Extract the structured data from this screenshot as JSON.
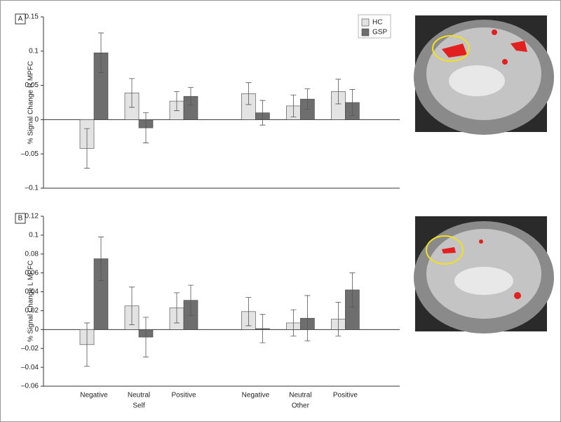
{
  "chart_data": [
    {
      "type": "bar",
      "panel_label": "A",
      "ylabel": "% Signal Change R MPFC",
      "categories": [
        null,
        null,
        null,
        null,
        null,
        null
      ],
      "series": [
        {
          "name": "HC",
          "color": "#e3e3e3",
          "values": [
            -0.042,
            0.039,
            0.027,
            0.038,
            0.02,
            0.041
          ],
          "errors": [
            0.029,
            0.021,
            0.014,
            0.016,
            0.016,
            0.018
          ]
        },
        {
          "name": "GSP",
          "color": "#6e6e6e",
          "values": [
            0.0975,
            -0.012,
            0.034,
            0.01,
            0.03,
            0.025
          ],
          "errors": [
            0.029,
            0.022,
            0.013,
            0.018,
            0.015,
            0.019
          ]
        }
      ],
      "ylim": [
        -0.1,
        0.15
      ],
      "yticks": [
        {
          "value": -0.1,
          "label": "–0.1"
        },
        {
          "value": -0.05,
          "label": "–0.05"
        },
        0,
        0.05,
        0.1,
        0.15
      ]
    },
    {
      "type": "bar",
      "panel_label": "B",
      "ylabel": "% Signal Change L MPFC",
      "categories": [
        "Negative",
        "Neutral",
        "Positive",
        "Negative",
        "Neutral",
        "Positive"
      ],
      "groups": [
        "Self",
        "Other"
      ],
      "series": [
        {
          "color": "#e3e3e3",
          "values": [
            -0.016,
            0.025,
            0.023,
            0.019,
            0.007,
            0.011
          ],
          "errors": [
            0.023,
            0.02,
            0.016,
            0.015,
            0.014,
            0.018
          ]
        },
        {
          "color": "#6e6e6e",
          "values": [
            0.075,
            -0.008,
            0.031,
            0.001,
            0.012,
            0.042
          ],
          "errors": [
            0.023,
            0.021,
            0.016,
            0.015,
            0.024,
            0.018
          ]
        }
      ],
      "ylim": [
        -0.06,
        0.12
      ],
      "yticks": [
        {
          "value": -0.06,
          "label": "–0.06"
        },
        {
          "value": -0.04,
          "label": "–0.04"
        },
        {
          "value": -0.02,
          "label": "–0.02"
        },
        0,
        0.02,
        0.04,
        0.06,
        0.08,
        0.1,
        0.12
      ]
    }
  ]
}
